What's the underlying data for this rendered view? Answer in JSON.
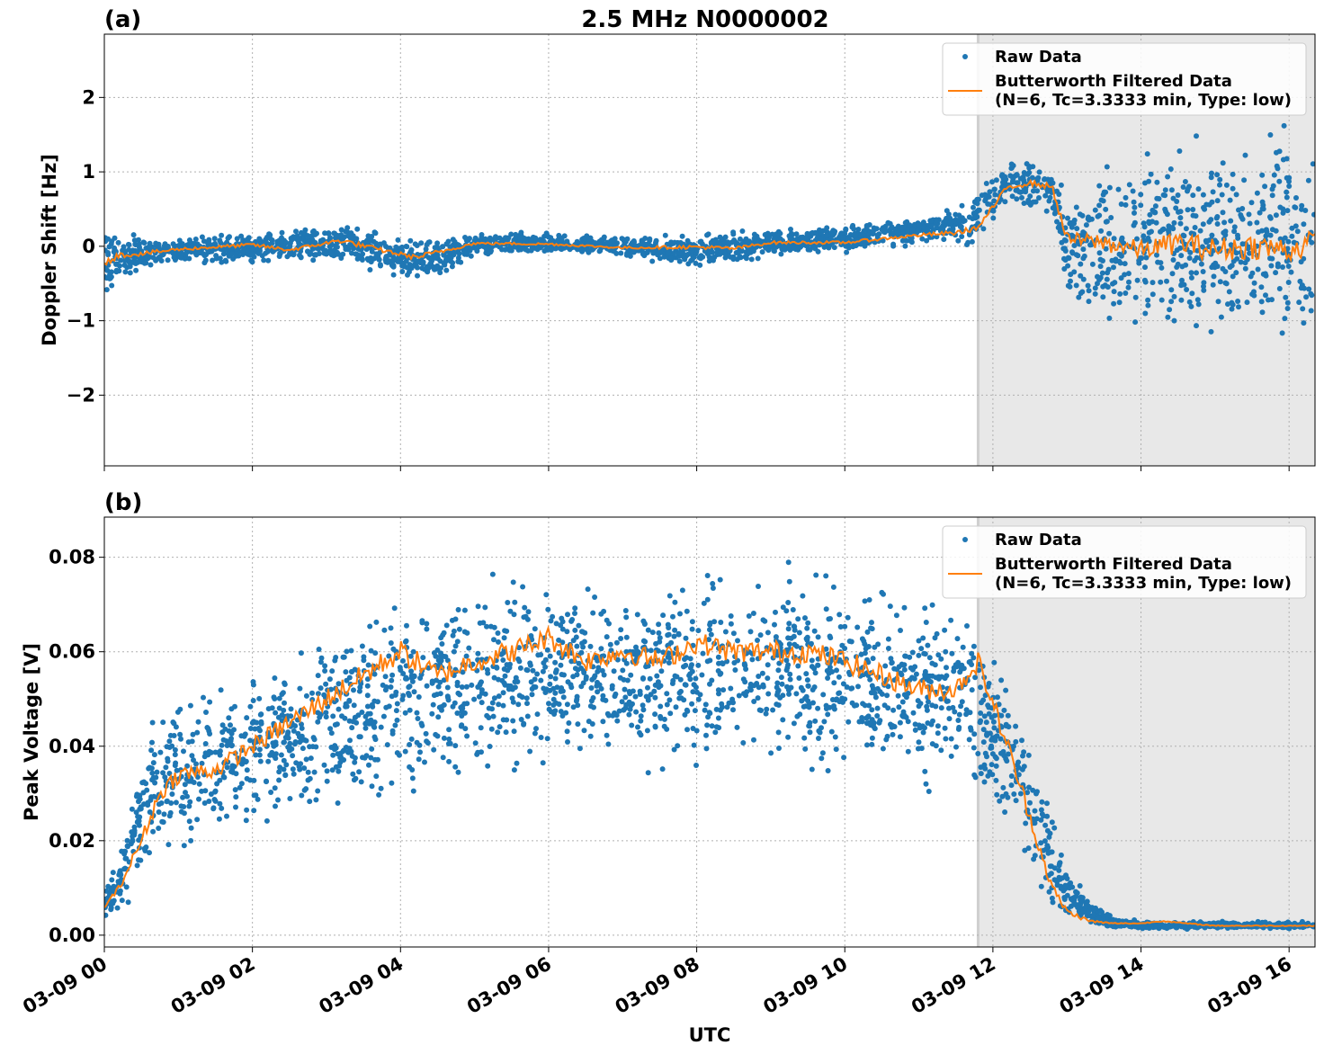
{
  "figure": {
    "title": "2.5 MHz N0000002",
    "xlabel": "UTC"
  },
  "colors": {
    "raw": "#1f77b4",
    "filtered": "#ff7f0e",
    "shade": "#e8e8e8",
    "grid": "#b0b0b0"
  },
  "legend": {
    "raw_label": "Raw Data",
    "filtered_label_line1": "Butterworth Filtered Data",
    "filtered_label_line2": "(N=6, Tc=3.3333 min, Type: low)",
    "placement": "top-right"
  },
  "chart_data": [
    {
      "type": "scatter",
      "panel_label": "(a)",
      "ylabel": "Doppler Shift [Hz]",
      "xlim_hours": [
        0,
        16.35
      ],
      "ylim": [
        -2.95,
        2.85
      ],
      "yticks": [
        -2,
        -1,
        0,
        1,
        2
      ],
      "ytick_labels": [
        "−2",
        "−1",
        "0",
        "1",
        "2"
      ],
      "shaded_region_hours": [
        11.8,
        16.35
      ],
      "grid": true,
      "series": [
        {
          "name": "Raw Data",
          "envelope_hours": [
            0,
            0.2,
            0.5,
            1,
            2,
            3,
            3.2,
            4,
            4.3,
            5,
            6,
            7,
            8,
            9,
            10,
            10.5,
            11,
            11.7,
            12.2,
            12.8,
            13,
            13.5,
            14,
            14.5,
            15,
            15.5,
            16,
            16.35
          ],
          "upper": [
            0.45,
            0.25,
            0.18,
            0.15,
            0.22,
            0.3,
            0.4,
            0.15,
            0.12,
            0.2,
            0.2,
            0.15,
            0.18,
            0.25,
            0.3,
            0.35,
            0.45,
            0.65,
            1.25,
            1.2,
            0.8,
            1.3,
            1.4,
            1.6,
            1.8,
            1.7,
            1.9,
            1.7
          ],
          "lower": [
            -0.9,
            -0.5,
            -0.4,
            -0.28,
            -0.25,
            -0.25,
            -0.3,
            -0.45,
            -0.6,
            -0.15,
            -0.12,
            -0.15,
            -0.35,
            -0.15,
            -0.1,
            -0.05,
            0.0,
            -0.05,
            0.5,
            0.4,
            -0.8,
            -1.3,
            -1.1,
            -1.4,
            -1.5,
            -1.7,
            -1.6,
            -1.8
          ]
        },
        {
          "name": "Butterworth Filtered Data",
          "x_hours": [
            0,
            0.2,
            0.5,
            1,
            2,
            2.5,
            3.2,
            3.6,
            4.2,
            4.5,
            5,
            6,
            7,
            8,
            8.5,
            9,
            10,
            10.5,
            11,
            11.5,
            11.8,
            12.2,
            12.5,
            12.8,
            13,
            13.5,
            14,
            14.5,
            15,
            15.5,
            16,
            16.35
          ],
          "y": [
            -0.2,
            -0.12,
            -0.1,
            -0.04,
            0.02,
            -0.05,
            0.08,
            -0.02,
            -0.15,
            -0.08,
            0.04,
            0.03,
            -0.02,
            -0.01,
            -0.03,
            0.05,
            0.05,
            0.1,
            0.15,
            0.18,
            0.25,
            0.8,
            0.85,
            0.8,
            0.1,
            0.05,
            -0.05,
            0.05,
            -0.05,
            0.0,
            -0.05,
            0.05
          ]
        }
      ]
    },
    {
      "type": "scatter",
      "panel_label": "(b)",
      "ylabel": "Peak Voltage [V]",
      "xlim_hours": [
        0,
        16.35
      ],
      "ylim": [
        -0.0025,
        0.0885
      ],
      "yticks": [
        0.0,
        0.02,
        0.04,
        0.06,
        0.08
      ],
      "ytick_labels": [
        "0.00",
        "0.02",
        "0.04",
        "0.06",
        "0.08"
      ],
      "xticks_hours": [
        0,
        2,
        4,
        6,
        8,
        10,
        12,
        14,
        16
      ],
      "xtick_labels": [
        "03-09 00",
        "03-09 02",
        "03-09 04",
        "03-09 06",
        "03-09 08",
        "03-09 10",
        "03-09 12",
        "03-09 14",
        "03-09 16"
      ],
      "shaded_region_hours": [
        11.8,
        16.35
      ],
      "grid": true,
      "series": [
        {
          "name": "Raw Data",
          "envelope_hours": [
            0,
            0.25,
            0.5,
            0.75,
            1,
            2,
            3,
            4,
            5,
            6,
            7,
            8,
            9,
            10,
            11,
            11.6,
            12.2,
            12.5,
            12.8,
            13,
            13.3,
            13.6,
            14,
            15,
            16,
            16.35
          ],
          "upper": [
            0.01,
            0.02,
            0.04,
            0.05,
            0.054,
            0.058,
            0.068,
            0.075,
            0.078,
            0.08,
            0.078,
            0.079,
            0.08,
            0.079,
            0.075,
            0.072,
            0.06,
            0.045,
            0.028,
            0.015,
            0.008,
            0.004,
            0.003,
            0.003,
            0.003,
            0.003
          ],
          "lower": [
            0.003,
            0.005,
            0.01,
            0.015,
            0.016,
            0.02,
            0.022,
            0.025,
            0.03,
            0.033,
            0.033,
            0.033,
            0.033,
            0.032,
            0.03,
            0.028,
            0.02,
            0.01,
            0.004,
            0.002,
            0.0015,
            0.0012,
            0.0012,
            0.0012,
            0.0012,
            0.0012
          ]
        },
        {
          "name": "Butterworth Filtered Data",
          "x_hours": [
            0,
            0.2,
            0.5,
            0.75,
            1,
            1.5,
            2,
            2.5,
            3,
            3.5,
            4,
            4.5,
            5,
            5.5,
            6,
            6.5,
            7,
            7.5,
            8,
            8.5,
            9,
            9.5,
            10,
            10.5,
            11,
            11.5,
            11.8,
            12.2,
            12.4,
            12.6,
            12.8,
            13,
            13.3,
            13.6,
            14,
            14.3,
            14.6,
            15,
            15.5,
            16,
            16.35
          ],
          "y": [
            0.006,
            0.01,
            0.02,
            0.03,
            0.034,
            0.035,
            0.04,
            0.045,
            0.05,
            0.055,
            0.06,
            0.055,
            0.058,
            0.06,
            0.063,
            0.058,
            0.06,
            0.058,
            0.062,
            0.06,
            0.06,
            0.06,
            0.058,
            0.055,
            0.052,
            0.052,
            0.058,
            0.04,
            0.03,
            0.02,
            0.01,
            0.005,
            0.003,
            0.0025,
            0.0025,
            0.003,
            0.0025,
            0.002,
            0.002,
            0.002,
            0.002
          ]
        }
      ]
    }
  ]
}
